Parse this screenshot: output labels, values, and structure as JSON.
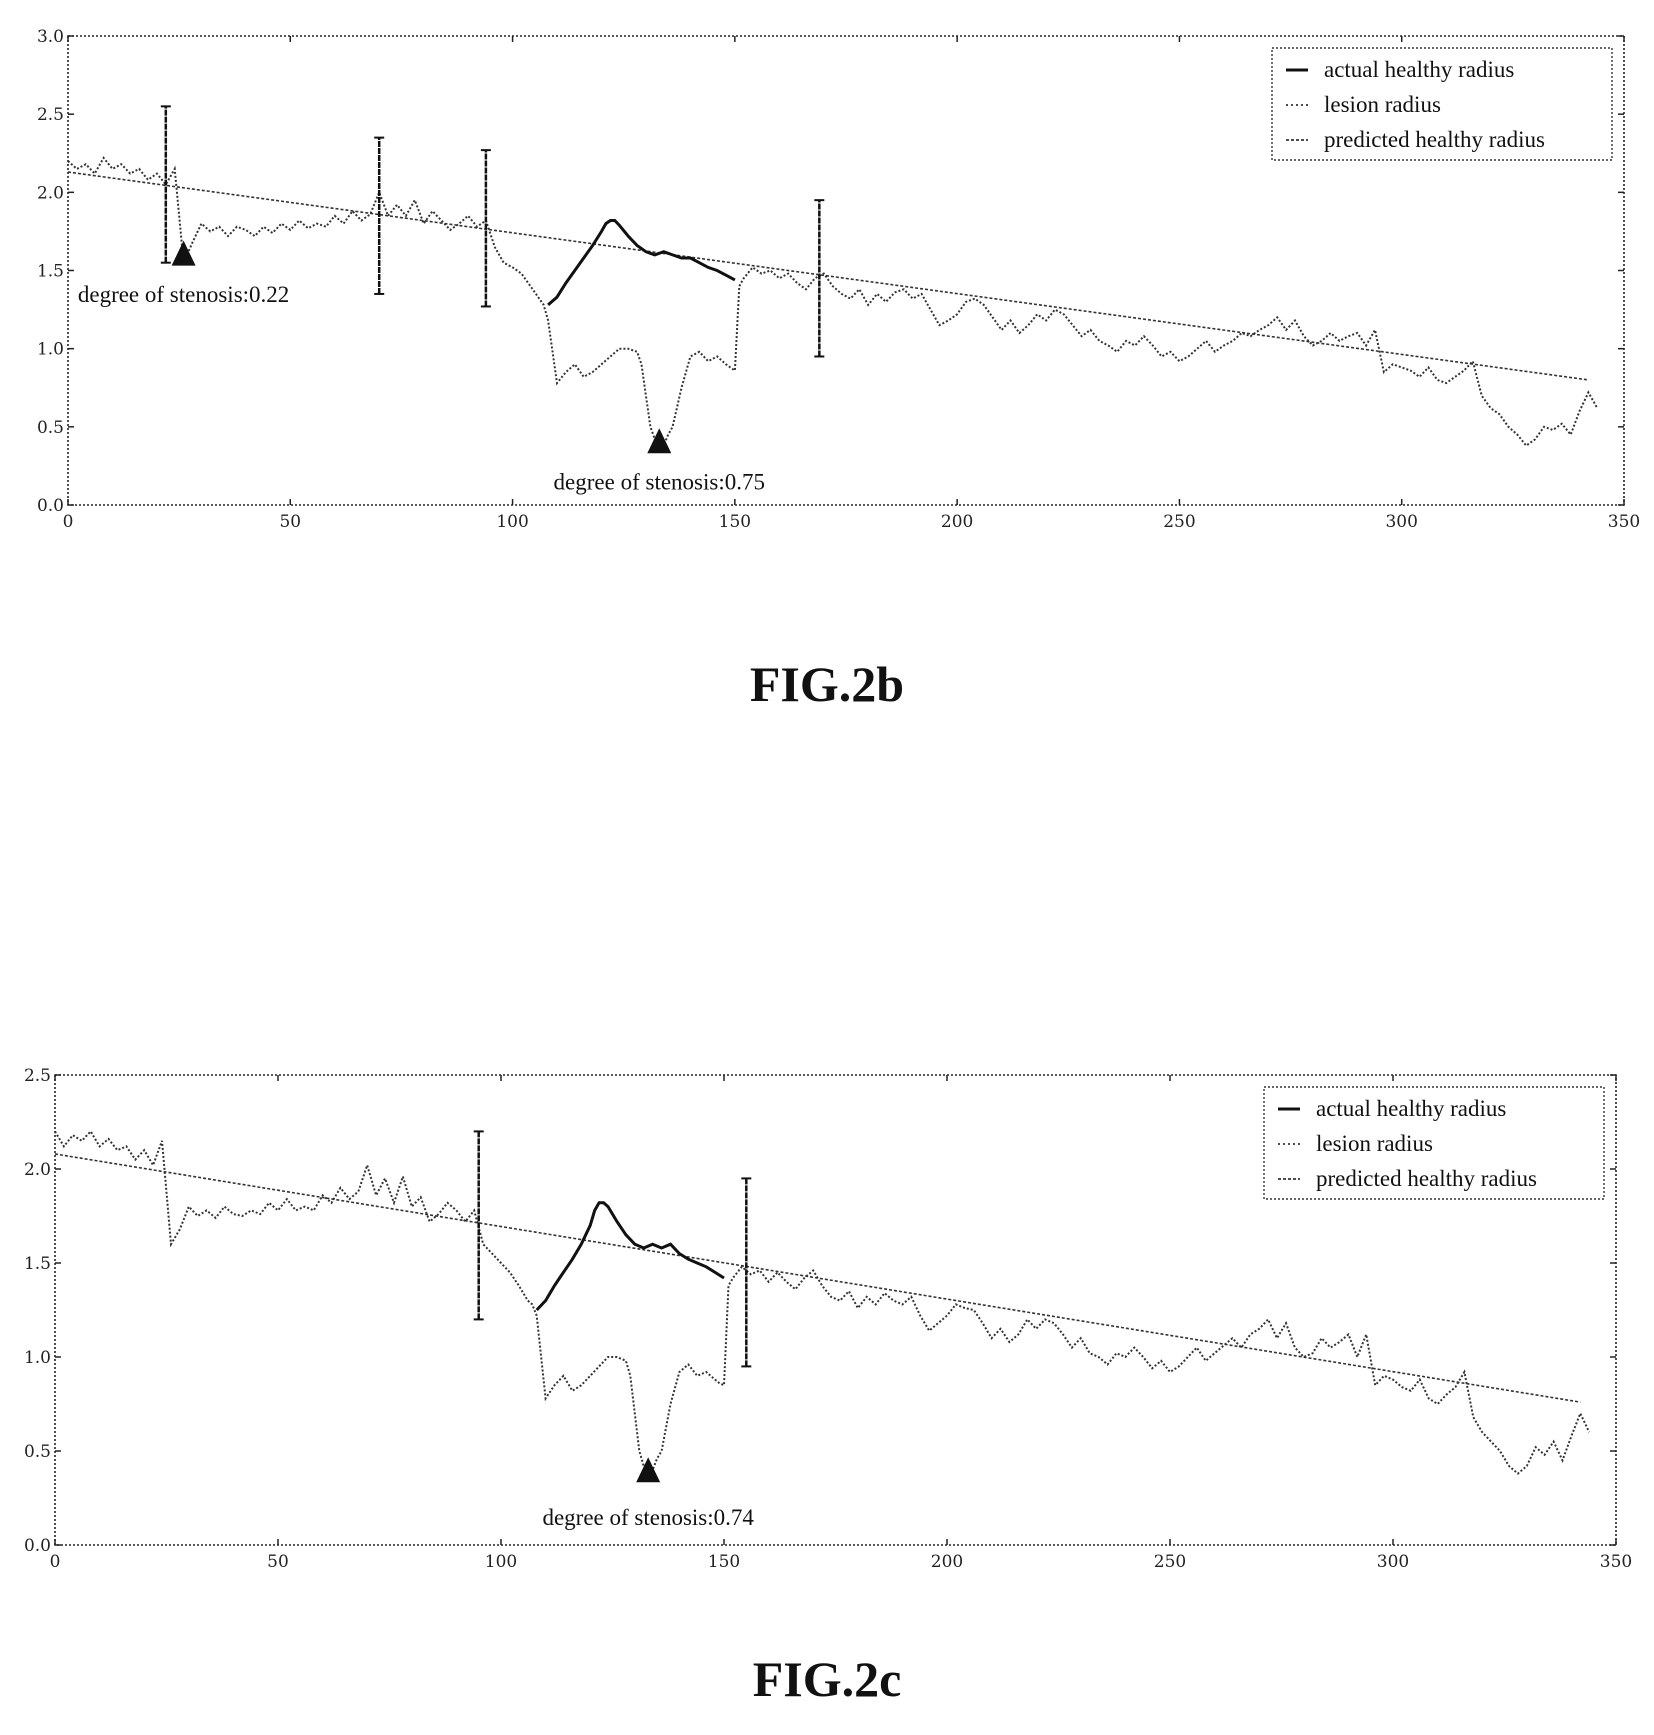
{
  "chart_data": [
    {
      "type": "line",
      "figure_label": "FIG.2b",
      "xlim": [
        0,
        350
      ],
      "ylim": [
        0.0,
        3.0
      ],
      "x_ticks": [
        0,
        50,
        100,
        150,
        200,
        250,
        300,
        350
      ],
      "y_ticks": [
        0.0,
        0.5,
        1.0,
        1.5,
        2.0,
        2.5,
        3.0
      ],
      "x_tick_labels": [
        "0",
        "50",
        "100",
        "150",
        "200",
        "250",
        "300",
        "350"
      ],
      "y_tick_labels": [
        "0.0",
        "0.5",
        "1.0",
        "1.5",
        "2.0",
        "2.5",
        "3.0"
      ],
      "legend": {
        "position": "top-right",
        "entries": [
          "actual healthy radius",
          "lesion radius",
          "predicted healthy radius"
        ]
      },
      "grid": false,
      "predicted_healthy_radius": {
        "x": [
          0,
          342
        ],
        "y": [
          2.13,
          0.8
        ]
      },
      "actual_healthy_radius": {
        "x": [
          108,
          110,
          112,
          114,
          116,
          118,
          120,
          121,
          122,
          123,
          124,
          126,
          128,
          130,
          132,
          134,
          136,
          138,
          140,
          142,
          144,
          146,
          148,
          150
        ],
        "y": [
          1.28,
          1.33,
          1.42,
          1.5,
          1.58,
          1.66,
          1.75,
          1.8,
          1.82,
          1.82,
          1.79,
          1.72,
          1.66,
          1.62,
          1.6,
          1.62,
          1.6,
          1.58,
          1.58,
          1.55,
          1.52,
          1.5,
          1.47,
          1.44
        ]
      },
      "lesion_radius": {
        "x": [
          0,
          2,
          4,
          6,
          8,
          10,
          12,
          14,
          16,
          18,
          20,
          22,
          24,
          26,
          28,
          30,
          32,
          34,
          36,
          38,
          40,
          42,
          44,
          46,
          48,
          50,
          52,
          54,
          56,
          58,
          60,
          62,
          64,
          66,
          68,
          70,
          72,
          74,
          76,
          78,
          80,
          82,
          84,
          86,
          88,
          90,
          92,
          94,
          96,
          98,
          100,
          102,
          104,
          106,
          107,
          108,
          110,
          112,
          114,
          116,
          118,
          120,
          122,
          124,
          126,
          128,
          129,
          130,
          131,
          132,
          133,
          134,
          135,
          136,
          138,
          140,
          142,
          144,
          146,
          148,
          149,
          150,
          151,
          152,
          154,
          156,
          158,
          160,
          162,
          164,
          166,
          168,
          170,
          172,
          174,
          176,
          178,
          180,
          182,
          184,
          186,
          188,
          190,
          192,
          194,
          196,
          198,
          200,
          202,
          204,
          206,
          208,
          210,
          212,
          214,
          216,
          218,
          220,
          222,
          224,
          226,
          228,
          230,
          232,
          234,
          236,
          238,
          240,
          242,
          244,
          246,
          248,
          250,
          252,
          254,
          256,
          258,
          260,
          262,
          264,
          266,
          268,
          270,
          272,
          274,
          276,
          278,
          280,
          282,
          284,
          286,
          288,
          290,
          292,
          294,
          296,
          298,
          300,
          302,
          304,
          306,
          308,
          310,
          312,
          314,
          316,
          318,
          320,
          322,
          324,
          326,
          328,
          330,
          332,
          334,
          336,
          338,
          340,
          342,
          344
        ],
        "y": [
          2.2,
          2.15,
          2.18,
          2.12,
          2.22,
          2.15,
          2.18,
          2.12,
          2.15,
          2.08,
          2.12,
          2.05,
          2.15,
          1.55,
          1.68,
          1.8,
          1.75,
          1.78,
          1.72,
          1.78,
          1.76,
          1.72,
          1.78,
          1.74,
          1.8,
          1.76,
          1.82,
          1.77,
          1.8,
          1.78,
          1.85,
          1.8,
          1.88,
          1.82,
          1.86,
          2.0,
          1.85,
          1.92,
          1.85,
          1.95,
          1.8,
          1.88,
          1.82,
          1.76,
          1.8,
          1.85,
          1.78,
          1.82,
          1.65,
          1.55,
          1.52,
          1.48,
          1.4,
          1.32,
          1.28,
          1.18,
          0.78,
          0.85,
          0.9,
          0.82,
          0.85,
          0.9,
          0.95,
          1.0,
          1.0,
          0.98,
          0.9,
          0.7,
          0.5,
          0.42,
          0.35,
          0.38,
          0.45,
          0.5,
          0.75,
          0.95,
          0.98,
          0.92,
          0.95,
          0.9,
          0.88,
          0.86,
          1.4,
          1.45,
          1.52,
          1.48,
          1.5,
          1.45,
          1.48,
          1.42,
          1.38,
          1.45,
          1.48,
          1.4,
          1.35,
          1.32,
          1.38,
          1.28,
          1.35,
          1.3,
          1.36,
          1.38,
          1.32,
          1.35,
          1.25,
          1.15,
          1.18,
          1.22,
          1.3,
          1.32,
          1.28,
          1.2,
          1.12,
          1.18,
          1.1,
          1.15,
          1.22,
          1.18,
          1.25,
          1.22,
          1.15,
          1.08,
          1.12,
          1.05,
          1.02,
          0.98,
          1.05,
          1.02,
          1.08,
          1.02,
          0.95,
          0.98,
          0.92,
          0.95,
          1.0,
          1.05,
          0.98,
          1.02,
          1.05,
          1.1,
          1.08,
          1.12,
          1.15,
          1.2,
          1.12,
          1.18,
          1.08,
          1.02,
          1.05,
          1.1,
          1.05,
          1.08,
          1.1,
          1.02,
          1.12,
          0.85,
          0.9,
          0.88,
          0.86,
          0.82,
          0.88,
          0.8,
          0.78,
          0.82,
          0.86,
          0.92,
          0.7,
          0.62,
          0.58,
          0.5,
          0.45,
          0.38,
          0.42,
          0.5,
          0.48,
          0.52,
          0.45,
          0.6,
          0.72,
          0.62
        ]
      },
      "error_bars": [
        {
          "x": 22,
          "ymin": 1.55,
          "ymax": 2.55
        },
        {
          "x": 70,
          "ymin": 1.35,
          "ymax": 2.35
        },
        {
          "x": 94,
          "ymin": 1.27,
          "ymax": 2.27
        },
        {
          "x": 169,
          "ymin": 0.95,
          "ymax": 1.95
        }
      ],
      "markers": [
        {
          "x": 26,
          "y": 1.55
        },
        {
          "x": 133,
          "y": 0.35
        }
      ],
      "annotations": [
        {
          "text": "degree of stenosis:0.22",
          "x": 26,
          "y": 1.35
        },
        {
          "text": "degree of stenosis:0.75",
          "x": 133,
          "y": 0.15
        }
      ]
    },
    {
      "type": "line",
      "figure_label": "FIG.2c",
      "xlim": [
        0,
        350
      ],
      "ylim": [
        0.0,
        2.5
      ],
      "x_ticks": [
        0,
        50,
        100,
        150,
        200,
        250,
        300,
        350
      ],
      "y_ticks": [
        0.0,
        0.5,
        1.0,
        1.5,
        2.0,
        2.5
      ],
      "x_tick_labels": [
        "0",
        "50",
        "100",
        "150",
        "200",
        "250",
        "300",
        "350"
      ],
      "y_tick_labels": [
        "0.0",
        "0.5",
        "1.0",
        "1.5",
        "2.0",
        "2.5"
      ],
      "legend": {
        "position": "top-right",
        "entries": [
          "actual healthy radius",
          "lesion radius",
          "predicted healthy radius"
        ]
      },
      "grid": false,
      "predicted_healthy_radius": {
        "x": [
          0,
          342
        ],
        "y": [
          2.08,
          0.76
        ]
      },
      "actual_healthy_radius": {
        "x": [
          108,
          110,
          112,
          114,
          116,
          118,
          120,
          121,
          122,
          123,
          124,
          126,
          128,
          130,
          132,
          134,
          136,
          138,
          140,
          142,
          144,
          146,
          148,
          150
        ],
        "y": [
          1.25,
          1.3,
          1.38,
          1.45,
          1.52,
          1.6,
          1.7,
          1.78,
          1.82,
          1.82,
          1.8,
          1.72,
          1.65,
          1.6,
          1.58,
          1.6,
          1.58,
          1.6,
          1.55,
          1.52,
          1.5,
          1.48,
          1.45,
          1.42
        ]
      },
      "lesion_radius": {
        "x": [
          0,
          2,
          4,
          6,
          8,
          10,
          12,
          14,
          16,
          18,
          20,
          22,
          24,
          26,
          28,
          30,
          32,
          34,
          36,
          38,
          40,
          42,
          44,
          46,
          48,
          50,
          52,
          54,
          56,
          58,
          60,
          62,
          64,
          66,
          68,
          70,
          72,
          74,
          76,
          78,
          80,
          82,
          84,
          86,
          88,
          90,
          92,
          94,
          96,
          98,
          100,
          102,
          104,
          106,
          107,
          108,
          110,
          112,
          114,
          116,
          118,
          120,
          122,
          124,
          126,
          128,
          129,
          130,
          131,
          132,
          133,
          134,
          135,
          136,
          138,
          140,
          142,
          144,
          146,
          148,
          149,
          150,
          151,
          152,
          154,
          156,
          158,
          160,
          162,
          164,
          166,
          168,
          170,
          172,
          174,
          176,
          178,
          180,
          182,
          184,
          186,
          188,
          190,
          192,
          194,
          196,
          198,
          200,
          202,
          204,
          206,
          208,
          210,
          212,
          214,
          216,
          218,
          220,
          222,
          224,
          226,
          228,
          230,
          232,
          234,
          236,
          238,
          240,
          242,
          244,
          246,
          248,
          250,
          252,
          254,
          256,
          258,
          260,
          262,
          264,
          266,
          268,
          270,
          272,
          274,
          276,
          278,
          280,
          282,
          284,
          286,
          288,
          290,
          292,
          294,
          296,
          298,
          300,
          302,
          304,
          306,
          308,
          310,
          312,
          314,
          316,
          318,
          320,
          322,
          324,
          326,
          328,
          330,
          332,
          334,
          336,
          338,
          340,
          342,
          344
        ],
        "y": [
          2.2,
          2.12,
          2.18,
          2.15,
          2.2,
          2.12,
          2.16,
          2.1,
          2.12,
          2.05,
          2.1,
          2.02,
          2.15,
          1.6,
          1.68,
          1.8,
          1.75,
          1.78,
          1.74,
          1.8,
          1.76,
          1.75,
          1.78,
          1.76,
          1.82,
          1.78,
          1.84,
          1.78,
          1.8,
          1.78,
          1.86,
          1.82,
          1.9,
          1.84,
          1.88,
          2.02,
          1.86,
          1.95,
          1.82,
          1.96,
          1.8,
          1.85,
          1.72,
          1.76,
          1.82,
          1.78,
          1.72,
          1.78,
          1.6,
          1.55,
          1.5,
          1.45,
          1.38,
          1.3,
          1.28,
          1.22,
          0.78,
          0.85,
          0.9,
          0.82,
          0.85,
          0.9,
          0.95,
          1.0,
          1.0,
          0.98,
          0.9,
          0.7,
          0.5,
          0.42,
          0.35,
          0.4,
          0.46,
          0.5,
          0.75,
          0.92,
          0.96,
          0.9,
          0.92,
          0.88,
          0.86,
          0.85,
          1.38,
          1.42,
          1.48,
          1.44,
          1.46,
          1.4,
          1.45,
          1.4,
          1.36,
          1.42,
          1.46,
          1.38,
          1.32,
          1.3,
          1.35,
          1.26,
          1.32,
          1.28,
          1.34,
          1.3,
          1.28,
          1.32,
          1.22,
          1.14,
          1.18,
          1.22,
          1.28,
          1.26,
          1.25,
          1.18,
          1.1,
          1.15,
          1.08,
          1.12,
          1.2,
          1.15,
          1.2,
          1.18,
          1.12,
          1.05,
          1.1,
          1.02,
          1.0,
          0.96,
          1.02,
          1.0,
          1.05,
          1.0,
          0.94,
          0.98,
          0.92,
          0.95,
          1.0,
          1.05,
          0.98,
          1.02,
          1.06,
          1.1,
          1.05,
          1.12,
          1.15,
          1.2,
          1.1,
          1.18,
          1.05,
          1.0,
          1.02,
          1.1,
          1.05,
          1.08,
          1.12,
          1.0,
          1.12,
          0.85,
          0.9,
          0.88,
          0.84,
          0.82,
          0.88,
          0.78,
          0.75,
          0.8,
          0.84,
          0.92,
          0.68,
          0.6,
          0.55,
          0.5,
          0.42,
          0.38,
          0.42,
          0.52,
          0.48,
          0.55,
          0.45,
          0.58,
          0.7,
          0.6
        ]
      },
      "error_bars": [
        {
          "x": 95,
          "ymin": 1.2,
          "ymax": 2.2
        },
        {
          "x": 155,
          "ymin": 0.95,
          "ymax": 1.95
        }
      ],
      "markers": [
        {
          "x": 133,
          "y": 0.35
        }
      ],
      "annotations": [
        {
          "text": "degree of stenosis:0.74",
          "x": 133,
          "y": 0.15
        }
      ]
    }
  ]
}
